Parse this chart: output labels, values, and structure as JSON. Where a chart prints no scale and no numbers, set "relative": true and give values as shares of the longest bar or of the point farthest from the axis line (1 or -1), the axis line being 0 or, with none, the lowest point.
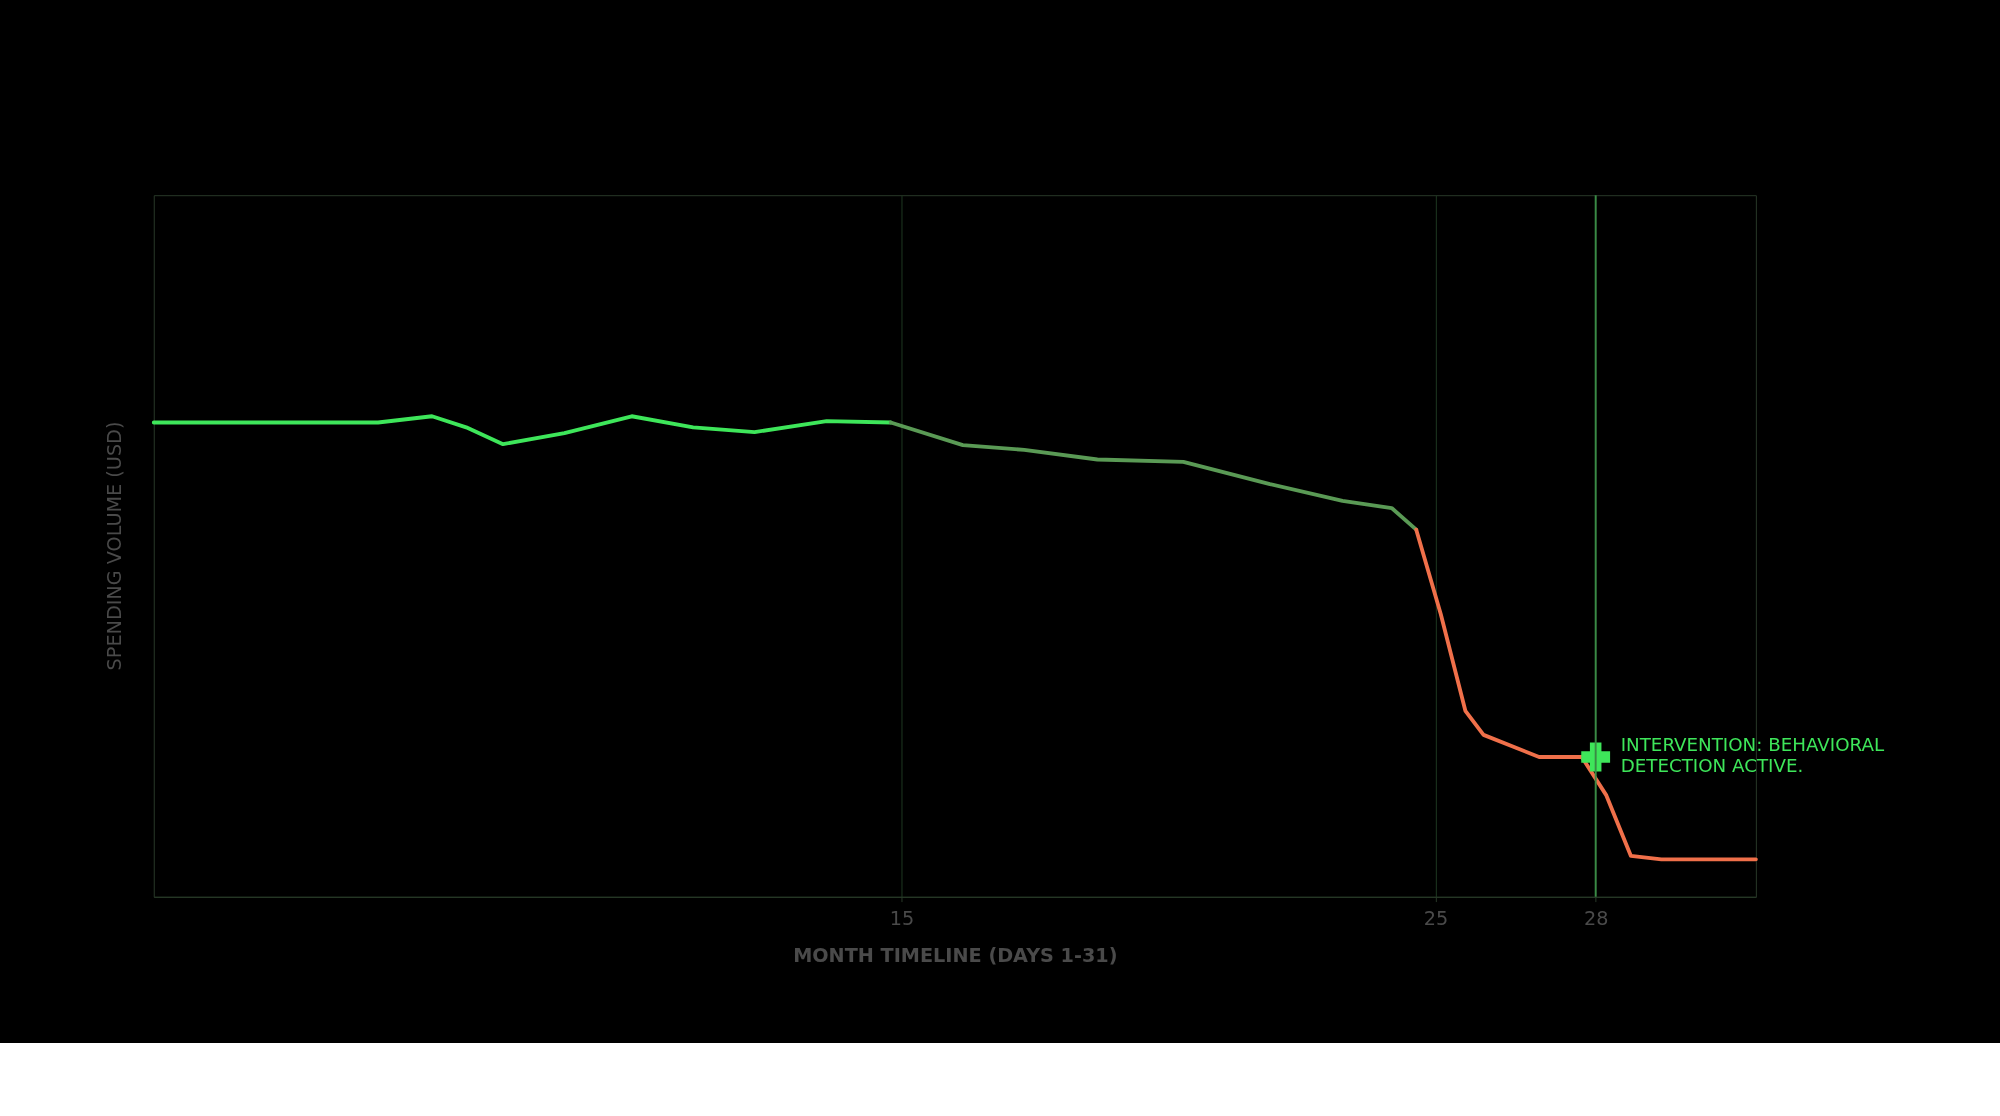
{
  "chart_data": {
    "type": "line",
    "relative": true,
    "xlabel": "MONTH TIMELINE (DAYS 1-31)",
    "ylabel": "SPENDING VOLUME (USD)",
    "xlim": [
      1,
      31
    ],
    "xticks": [
      15,
      25,
      28
    ],
    "grid": "x",
    "legend": false,
    "tick_labels": "x",
    "line_style": "solid",
    "marker": "none",
    "series": [
      {
        "color": "#3ee65a",
        "x": [
          1,
          5.2,
          6.21,
          6.85,
          7.54,
          8.69,
          9.95,
          11.1,
          12.25,
          13.6,
          14.8
        ],
        "values": [
          0.987,
          0.987,
          1.0,
          0.977,
          0.942,
          0.965,
          1.0,
          0.977,
          0.967,
          0.99,
          0.987
        ]
      },
      {
        "color": "#5a9a55",
        "x": [
          14.8,
          16.15,
          17.3,
          18.67,
          20.28,
          21.9,
          23.26,
          24.18,
          24.64
        ],
        "values": [
          0.987,
          0.94,
          0.93,
          0.91,
          0.905,
          0.859,
          0.824,
          0.809,
          0.764
        ]
      },
      {
        "color": "#f0704a",
        "x": [
          24.64,
          25.1,
          25.56,
          25.9,
          26.94,
          27.74,
          28.2,
          28.66,
          29.23,
          31
        ],
        "values": [
          0.764,
          0.588,
          0.387,
          0.337,
          0.291,
          0.291,
          0.211,
          0.085,
          0.078,
          0.078
        ]
      },
      {
        "type": "scatter",
        "marker": "cross",
        "color": "#3ee65a",
        "x": [
          28
        ],
        "values": [
          0.291
        ]
      }
    ],
    "ref_lines": [
      {
        "axis": "x",
        "value": 28,
        "color": "#3a8a45"
      }
    ],
    "annotations": [
      {
        "text": "INTERVENTION: BEHAVIORAL DETECTION ACTIVE.",
        "x": 28,
        "y": 0.291
      }
    ]
  }
}
